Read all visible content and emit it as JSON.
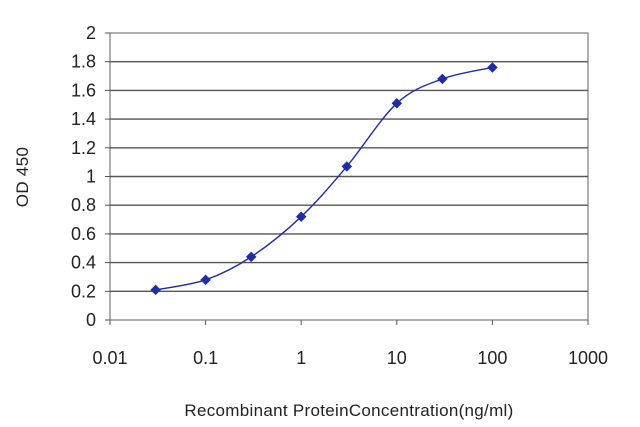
{
  "chart_data": {
    "type": "line",
    "title": "",
    "xlabel": "Recombinant ProteinConcentration(ng/ml)",
    "ylabel": "OD 450",
    "xscale": "log",
    "xlim": [
      0.01,
      1000
    ],
    "ylim": [
      0,
      2
    ],
    "grid": "horizontal",
    "legend": "none",
    "x_ticks": [
      "0.01",
      "0.1",
      "1",
      "10",
      "100",
      "1000"
    ],
    "y_ticks": [
      "0",
      "0.2",
      "0.4",
      "0.6",
      "0.8",
      "1",
      "1.2",
      "1.4",
      "1.6",
      "1.8",
      "2"
    ],
    "series": [
      {
        "color": "#1f2fa3",
        "marker": "diamond",
        "x": [
          0.03,
          0.1,
          0.3,
          1,
          3,
          10,
          30,
          100
        ],
        "y": [
          0.21,
          0.28,
          0.44,
          0.72,
          1.07,
          1.51,
          1.68,
          1.76
        ]
      }
    ]
  }
}
